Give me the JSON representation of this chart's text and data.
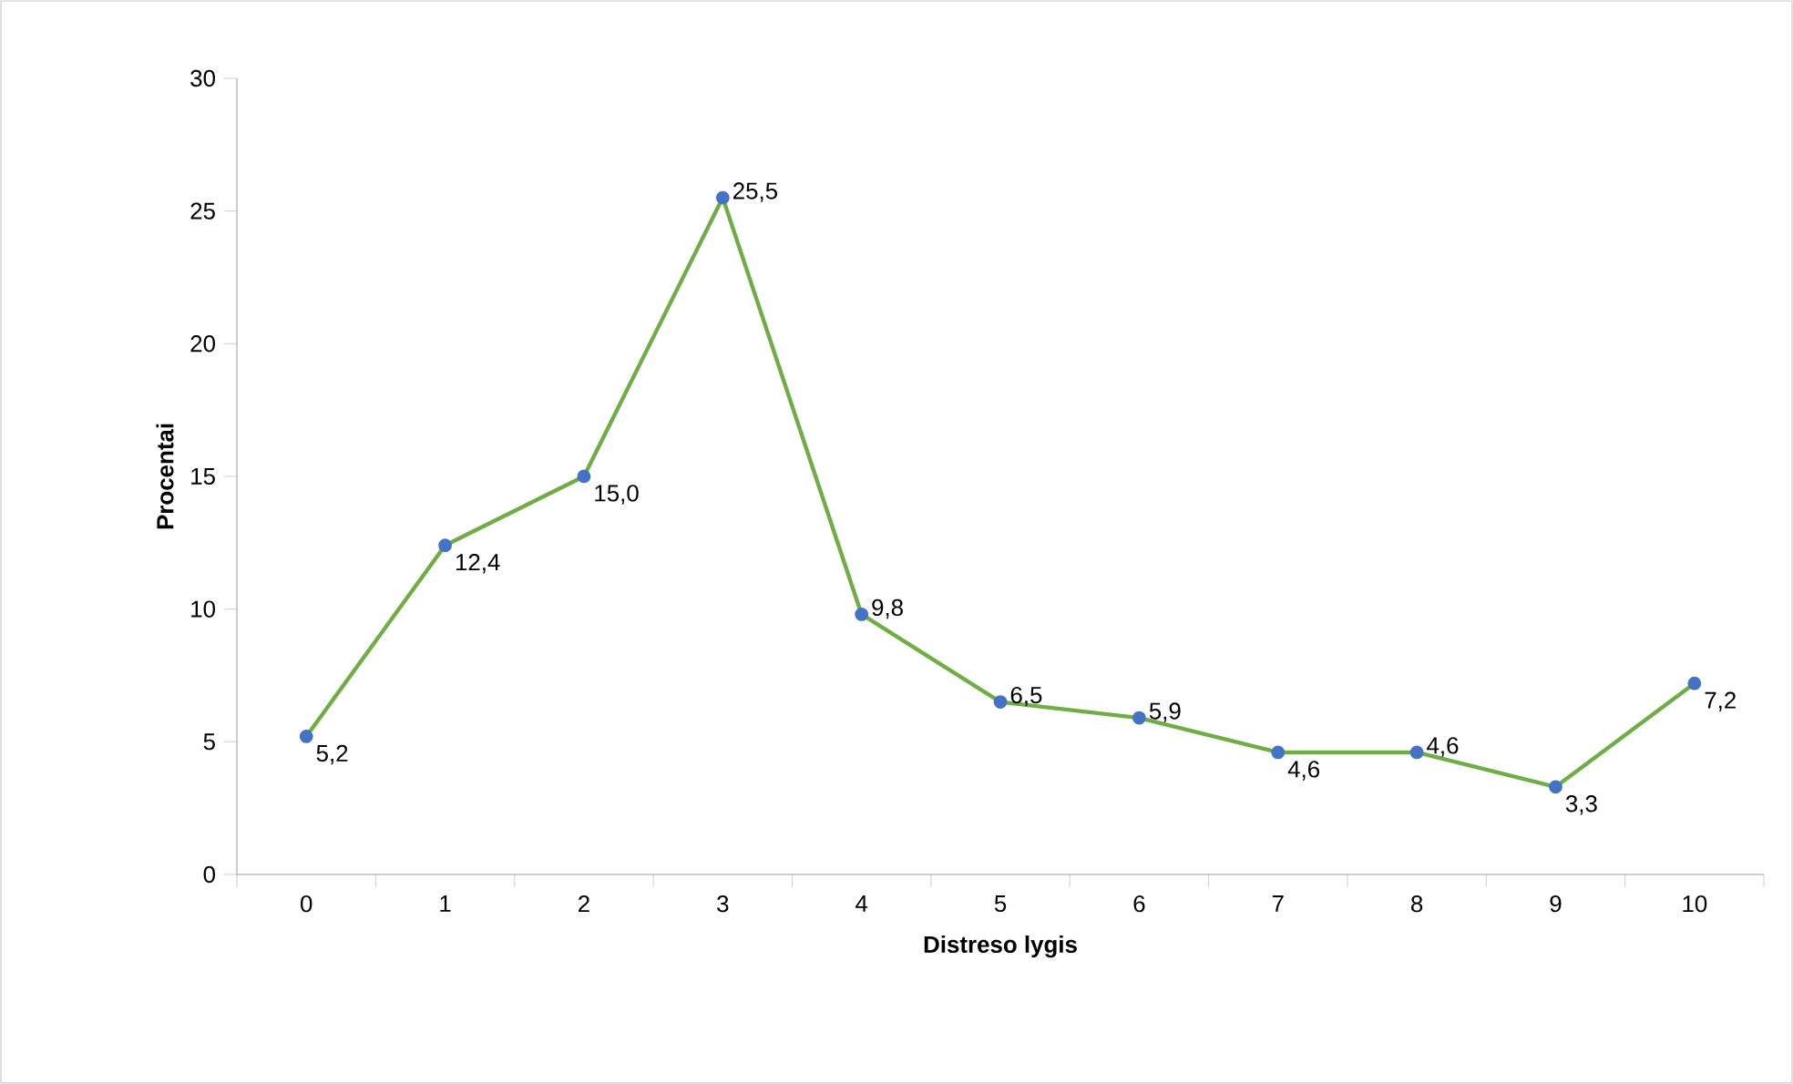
{
  "chart_data": {
    "type": "line",
    "xlabel": "Distreso lygis",
    "ylabel": "Procentai",
    "categories": [
      "0",
      "1",
      "2",
      "3",
      "4",
      "5",
      "6",
      "7",
      "8",
      "9",
      "10"
    ],
    "series": [
      {
        "color": "#70ad47",
        "values": [
          5.2,
          12.4,
          15.0,
          25.5,
          9.8,
          6.5,
          5.9,
          4.6,
          4.6,
          3.3,
          7.2
        ],
        "value_labels": [
          "5,2",
          "12,4",
          "15,0",
          "25,5",
          "9,8",
          "6,5",
          "5,9",
          "4,6",
          "4,6",
          "3,3",
          "7,2"
        ]
      }
    ],
    "ylim": [
      0,
      30
    ],
    "yticks": [
      0,
      5,
      10,
      15,
      20,
      25,
      30
    ],
    "marker": "circle",
    "line_style": "solid"
  }
}
